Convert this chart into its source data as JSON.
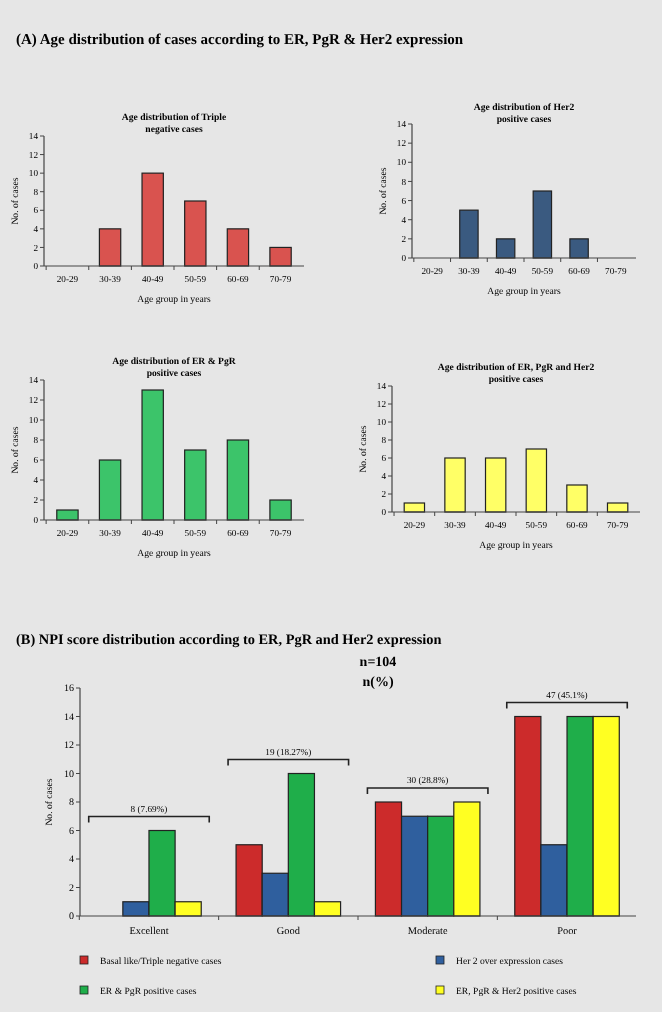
{
  "chart_data": [
    {
      "type": "bar",
      "title": "Age distribution of Triple negative cases",
      "xlabel": "Age group in years",
      "ylabel": "No. of cases",
      "annotations": [
        "(A)    Age distribution of cases according to ER, PgR & Her2  expression"
      ],
      "categories": [
        "20-29",
        "30-39",
        "40-49",
        "50-59",
        "60-69",
        "70-79"
      ],
      "values": [
        0,
        4,
        10,
        7,
        4,
        2
      ],
      "color": "#d9534f",
      "ylim": [
        0,
        14
      ],
      "yticks": [
        0,
        2,
        4,
        6,
        8,
        10,
        12,
        14
      ],
      "grid": false,
      "legend": false
    },
    {
      "type": "bar",
      "title": "Age distribution of Her2 positive cases",
      "xlabel": "Age group in years",
      "ylabel": "No. of cases",
      "categories": [
        "20-29",
        "30-39",
        "40-49",
        "50-59",
        "60-69",
        "70-79"
      ],
      "values": [
        0,
        5,
        2,
        7,
        2,
        0
      ],
      "color": "#3a5a80",
      "ylim": [
        0,
        14
      ],
      "yticks": [
        0,
        2,
        4,
        6,
        8,
        10,
        12,
        14
      ],
      "grid": false,
      "legend": false
    },
    {
      "type": "bar",
      "title": "Age distribution of ER & PgR positive cases",
      "xlabel": "Age group in years",
      "ylabel": "No. of cases",
      "categories": [
        "20-29",
        "30-39",
        "40-49",
        "50-59",
        "60-69",
        "70-79"
      ],
      "values": [
        1,
        6,
        13,
        7,
        8,
        2
      ],
      "color": "#3cc46a",
      "ylim": [
        0,
        14
      ],
      "yticks": [
        0,
        2,
        4,
        6,
        8,
        10,
        12,
        14
      ],
      "grid": false,
      "legend": false
    },
    {
      "type": "bar",
      "title": "Age distribution of ER, PgR and Her2 positive cases",
      "xlabel": "Age group in years",
      "ylabel": "No. of cases",
      "categories": [
        "20-29",
        "30-39",
        "40-49",
        "50-59",
        "60-69",
        "70-79"
      ],
      "values": [
        1,
        6,
        6,
        7,
        3,
        1
      ],
      "color": "#ffff66",
      "ylim": [
        0,
        14
      ],
      "yticks": [
        0,
        2,
        4,
        6,
        8,
        10,
        12,
        14
      ],
      "grid": false,
      "legend": false
    },
    {
      "type": "bar",
      "title": "(B)      NPI score distribution according to ER, PgR and Her2 expression",
      "subtitle": "n=104",
      "ylabel": "No. of cases",
      "categories": [
        "Excellent",
        "Good",
        "Moderate",
        "Poor"
      ],
      "ylim": [
        0,
        16
      ],
      "yticks": [
        0,
        2,
        4,
        6,
        8,
        10,
        12,
        14,
        16
      ],
      "grid": false,
      "legend": "bottom",
      "annotations": [
        "n(%)",
        "8 (7.69%)",
        "19 (18.27%)",
        "30 (28.8%)",
        "47 (45.1%)"
      ],
      "series": [
        {
          "name": "Basal like/Triple negative cases",
          "color": "#cc2b2b",
          "values": [
            0,
            5,
            8,
            14
          ]
        },
        {
          "name": "Her 2 over expression cases",
          "color": "#2f5f9e",
          "values": [
            1,
            3,
            7,
            5
          ]
        },
        {
          "name": "ER & PgR positive cases",
          "color": "#1fae4a",
          "values": [
            6,
            10,
            7,
            14
          ]
        },
        {
          "name": "ER, PgR & Her2 positive cases",
          "color": "#ffff22",
          "values": [
            1,
            1,
            8,
            14
          ]
        }
      ]
    }
  ]
}
